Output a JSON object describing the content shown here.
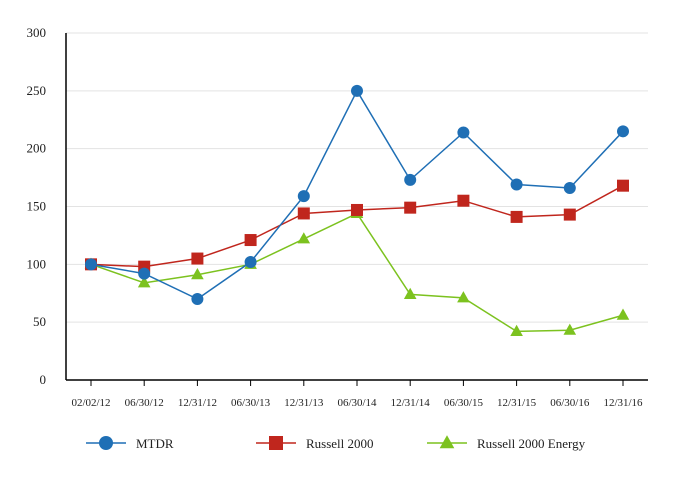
{
  "chart_data": {
    "type": "line",
    "title": "",
    "xlabel": "",
    "ylabel": "",
    "ylim": [
      0,
      300
    ],
    "yticks": [
      0,
      50,
      100,
      150,
      200,
      250,
      300
    ],
    "grid": "horizontal",
    "legend_position": "bottom",
    "categories": [
      "02/02/12",
      "06/30/12",
      "12/31/12",
      "06/30/13",
      "12/31/13",
      "06/30/14",
      "12/31/14",
      "06/30/15",
      "12/31/15",
      "06/30/16",
      "12/31/16"
    ],
    "series": [
      {
        "name": "MTDR",
        "marker": "circle",
        "color": "#1f6fb5",
        "values": [
          100,
          92,
          70,
          102,
          159,
          250,
          173,
          214,
          169,
          166,
          215
        ]
      },
      {
        "name": "Russell 2000",
        "marker": "square",
        "color": "#c0261d",
        "values": [
          100,
          98,
          105,
          121,
          144,
          147,
          149,
          155,
          141,
          143,
          168
        ]
      },
      {
        "name": "Russell 2000 Energy",
        "marker": "triangle",
        "color": "#7cc21f",
        "values": [
          100,
          84,
          91,
          100,
          122,
          144,
          74,
          71,
          42,
          43,
          56
        ]
      }
    ]
  }
}
